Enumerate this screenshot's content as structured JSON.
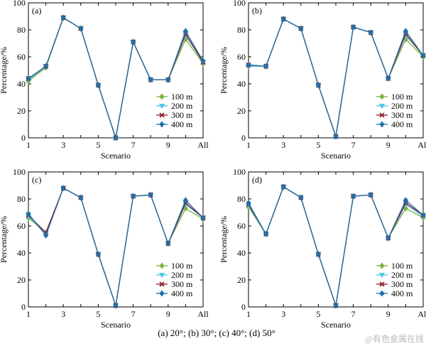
{
  "caption": "(a) 20°; (b) 30°; (c) 40°; (d) 50°",
  "watermark": "@有色金属在线",
  "colors": {
    "100 m": "#7cb342",
    "200 m": "#4fc3e8",
    "300 m": "#8b1a2b",
    "400 m": "#1f6fa8"
  },
  "markers": {
    "100 m": "diamond",
    "200 m": "triangle-down",
    "300 m": "x",
    "400 m": "diamond"
  },
  "chart_data": [
    {
      "type": "line",
      "panel_label": "(a)",
      "xlabel": "Scenario",
      "ylabel": "Percentage/%",
      "ylim": [
        0,
        100
      ],
      "yticks": [
        "0",
        "20",
        "40",
        "60",
        "80",
        "100"
      ],
      "categories": [
        "1",
        "2",
        "3",
        "4",
        "5",
        "6",
        "7",
        "8",
        "9",
        "10",
        "All"
      ],
      "xtick_labels": [
        "1",
        "",
        "3",
        "",
        "5",
        "",
        "7",
        "",
        "9",
        "",
        "All"
      ],
      "legend_position": "bottom-right",
      "series": [
        {
          "name": "100 m",
          "values": [
            42,
            52,
            89,
            81,
            39,
            0,
            71,
            43,
            43,
            73,
            55
          ]
        },
        {
          "name": "200 m",
          "values": [
            43,
            53,
            89,
            81,
            39,
            0,
            71,
            43,
            43,
            76,
            56
          ]
        },
        {
          "name": "300 m",
          "values": [
            44,
            53,
            89,
            81,
            39,
            0,
            71,
            43,
            43,
            77,
            56
          ]
        },
        {
          "name": "400 m",
          "values": [
            44,
            53,
            89,
            81,
            39,
            0,
            71,
            43,
            43,
            79,
            57
          ]
        }
      ]
    },
    {
      "type": "line",
      "panel_label": "(b)",
      "xlabel": "Scenario",
      "ylabel": "Percentage/%",
      "ylim": [
        0,
        100
      ],
      "yticks": [
        "0",
        "20",
        "40",
        "60",
        "80",
        "100"
      ],
      "categories": [
        "1",
        "2",
        "3",
        "4",
        "5",
        "6",
        "7",
        "8",
        "9",
        "10",
        "All"
      ],
      "xtick_labels": [
        "1",
        "",
        "3",
        "",
        "5",
        "",
        "7",
        "",
        "9",
        "",
        "All"
      ],
      "legend_position": "bottom-right",
      "series": [
        {
          "name": "100 m",
          "values": [
            53,
            53,
            88,
            81,
            39,
            1,
            82,
            78,
            44,
            73,
            60
          ]
        },
        {
          "name": "200 m",
          "values": [
            53,
            53,
            88,
            81,
            39,
            1,
            82,
            78,
            44,
            76,
            61
          ]
        },
        {
          "name": "300 m",
          "values": [
            54,
            53,
            88,
            81,
            39,
            1,
            82,
            78,
            44,
            77,
            61
          ]
        },
        {
          "name": "400 m",
          "values": [
            54,
            53,
            88,
            81,
            39,
            1,
            82,
            78,
            44,
            79,
            61
          ]
        }
      ]
    },
    {
      "type": "line",
      "panel_label": "(c)",
      "xlabel": "Scenario",
      "ylabel": "Percentage/%",
      "ylim": [
        0,
        100
      ],
      "yticks": [
        "0",
        "20",
        "40",
        "60",
        "80",
        "100"
      ],
      "categories": [
        "1",
        "2",
        "3",
        "4",
        "5",
        "6",
        "7",
        "8",
        "9",
        "10",
        "All"
      ],
      "xtick_labels": [
        "1",
        "",
        "3",
        "",
        "5",
        "",
        "7",
        "",
        "9",
        "",
        "All"
      ],
      "legend_position": "bottom-right",
      "series": [
        {
          "name": "100 m",
          "values": [
            66,
            55,
            88,
            81,
            39,
            1,
            82,
            83,
            47,
            73,
            65
          ]
        },
        {
          "name": "200 m",
          "values": [
            67,
            55,
            88,
            81,
            39,
            1,
            82,
            83,
            47,
            76,
            66
          ]
        },
        {
          "name": "300 m",
          "values": [
            68,
            55,
            88,
            81,
            39,
            1,
            82,
            83,
            47,
            77,
            66
          ]
        },
        {
          "name": "400 m",
          "values": [
            69,
            53,
            88,
            81,
            39,
            1,
            82,
            83,
            47,
            79,
            66
          ]
        }
      ]
    },
    {
      "type": "line",
      "panel_label": "(d)",
      "xlabel": "Scenario",
      "ylabel": "Percentage/%",
      "ylim": [
        0,
        100
      ],
      "yticks": [
        "0",
        "20",
        "40",
        "60",
        "80",
        "100"
      ],
      "categories": [
        "1",
        "2",
        "3",
        "4",
        "5",
        "6",
        "7",
        "8",
        "9",
        "10",
        "All"
      ],
      "xtick_labels": [
        "1",
        "",
        "3",
        "",
        "5",
        "",
        "7",
        "",
        "9",
        "",
        "All"
      ],
      "legend_position": "bottom-right",
      "series": [
        {
          "name": "100 m",
          "values": [
            74,
            54,
            89,
            81,
            39,
            1,
            82,
            83,
            51,
            73,
            66
          ]
        },
        {
          "name": "200 m",
          "values": [
            75,
            54,
            89,
            81,
            39,
            1,
            82,
            83,
            51,
            76,
            67
          ]
        },
        {
          "name": "300 m",
          "values": [
            76,
            54,
            89,
            81,
            39,
            1,
            82,
            83,
            51,
            77,
            68
          ]
        },
        {
          "name": "400 m",
          "values": [
            77,
            54,
            89,
            81,
            39,
            1,
            82,
            83,
            51,
            79,
            68
          ]
        }
      ]
    }
  ]
}
